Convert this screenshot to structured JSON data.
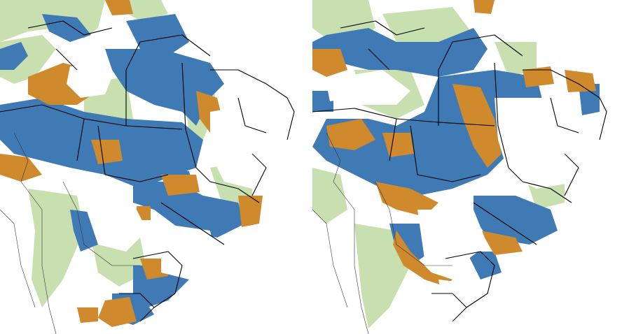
{
  "colors": {
    "background": "#ffffff",
    "green": "#c8dfb0",
    "blue": "#3f7ab5",
    "orange": "#cf8a2e",
    "state_borders": "#000000",
    "country_borders": "#333333",
    "land_outline": "#555555"
  },
  "panels": [
    {
      "id": "left",
      "label": ""
    },
    {
      "id": "right",
      "label": ""
    }
  ]
}
